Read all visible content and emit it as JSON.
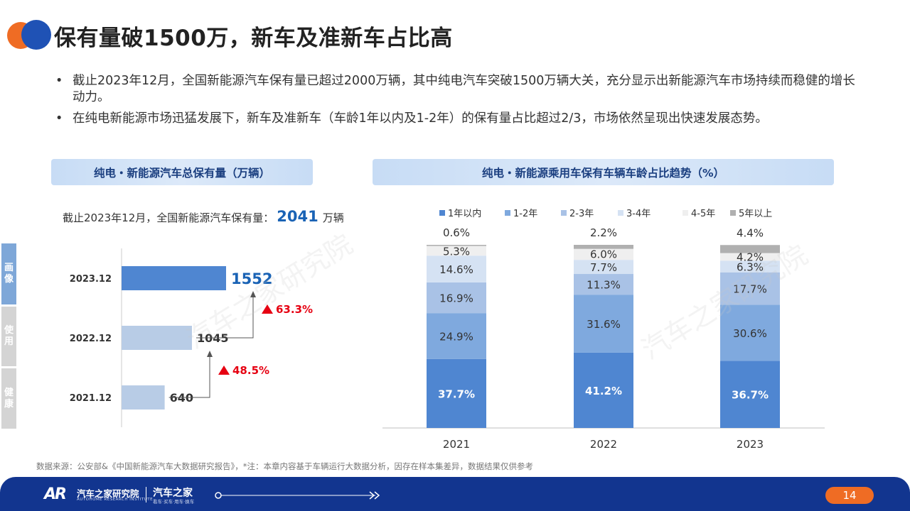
{
  "page": {
    "title": "保有量破1500万，新车及准新车占比高",
    "bullets": [
      "截止2023年12月，全国新能源汽车保有量已超过2000万辆，其中纯电汽车突破1500万辆大关，充分显示出新能源汽车市场持续而稳健的增长动力。",
      "在纯电新能源市场迅猛发展下，新车及准新车（车龄1年以内及1-2年）的保有量占比超过2/3，市场依然呈现出快速发展态势。"
    ],
    "left_section_title": "纯电・新能源汽车总保有量（万辆）",
    "right_section_title": "纯电・新能源乘用车保有车辆车龄占比趋势（%）",
    "total_prefix": "截止2023年12月，全国新能源汽车保有量：",
    "total_value": "2041",
    "total_unit": "万辆",
    "side_tabs": [
      "画像",
      "使用",
      "健康"
    ],
    "source_note": "数据来源：公安部&《中国新能源汽车大数据研究报告》，*注：本章内容基于车辆运行大数据分析，因存在样本集差异，数据结果仅供参考",
    "watermark": "汽车之家研究院",
    "footer": {
      "logo_mark": "AR",
      "org_name": "汽车之家研究院",
      "org_name_en": "AUTOHOME RESEARCH INSTITUTE",
      "brand": "汽车之家",
      "brand_sub": "看车·买车·用车·换车",
      "page_number": "14"
    },
    "colors": {
      "accent_blue": "#1f52b5",
      "accent_orange": "#ef6c24",
      "growth_red": "#e60012",
      "total_blue": "#1a63b5"
    }
  },
  "chart_data": [
    {
      "type": "bar",
      "orientation": "horizontal",
      "categories": [
        "2023.12",
        "2022.12",
        "2021.12"
      ],
      "values": [
        1552,
        1045,
        640
      ],
      "value_labels": [
        "1552",
        "1045",
        "640"
      ],
      "growth_labels": [
        "48.5%",
        "63.3%"
      ],
      "highlight_index": 0,
      "colors": {
        "highlight": "#4f86d1",
        "normal": "#b8cce6"
      }
    },
    {
      "type": "bar",
      "stacked": true,
      "categories": [
        "2021",
        "2022",
        "2023"
      ],
      "legend_position": "top",
      "series": [
        {
          "name": "1年以内",
          "color": "#4f86d1",
          "values": [
            37.7,
            41.2,
            36.7
          ],
          "labels": [
            "37.7%",
            "41.2%",
            "36.7%"
          ]
        },
        {
          "name": "1-2年",
          "color": "#7fa9de",
          "values": [
            24.9,
            31.6,
            30.6
          ],
          "labels": [
            "24.9%",
            "31.6%",
            "30.6%"
          ]
        },
        {
          "name": "2-3年",
          "color": "#a9c2e6",
          "values": [
            16.9,
            11.3,
            17.7
          ],
          "labels": [
            "16.9%",
            "11.3%",
            "17.7%"
          ]
        },
        {
          "name": "3-4年",
          "color": "#d5e2f3",
          "values": [
            14.6,
            7.7,
            6.3
          ],
          "labels": [
            "14.6%",
            "7.7%",
            "6.3%"
          ]
        },
        {
          "name": "4-5年",
          "color": "#efefef",
          "values": [
            5.3,
            6.0,
            4.2
          ],
          "labels": [
            "5.3%",
            "6.0%",
            "4.2%"
          ]
        },
        {
          "name": "5年以上",
          "color": "#b0b0b0",
          "values": [
            0.6,
            2.2,
            4.4
          ],
          "labels": [
            "0.6%",
            "2.2%",
            "4.4%"
          ]
        }
      ]
    }
  ]
}
